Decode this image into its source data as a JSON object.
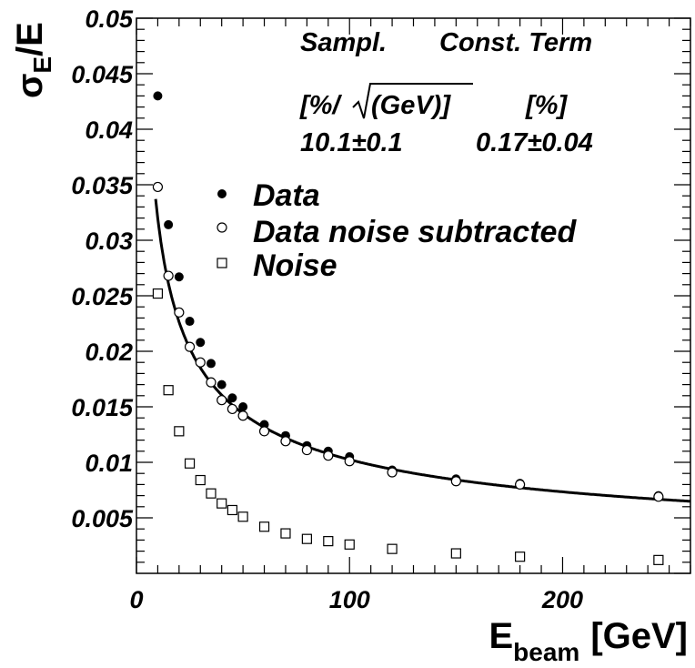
{
  "chart_data": {
    "type": "scatter",
    "xlabel": "E",
    "xlabel_sub": "beam",
    "xlabel_unit": "[GeV]",
    "ylabel": "σ",
    "ylabel_sub": "E",
    "ylabel_tail": "/E",
    "xlim": [
      0,
      260
    ],
    "ylim": [
      0,
      0.05
    ],
    "x_ticks": [
      0,
      100,
      200
    ],
    "y_ticks": [
      0.005,
      0.01,
      0.015,
      0.02,
      0.025,
      0.03,
      0.035,
      0.04,
      0.045,
      0.05
    ],
    "y_tick_labels": [
      "0.005",
      "0.01",
      "0.015",
      "0.02",
      "0.025",
      "0.03",
      "0.035",
      "0.04",
      "0.045",
      "0.05"
    ],
    "annotations": {
      "header_left": "Sampl.",
      "header_right": "Const. Term",
      "unit_left_a": "[%/",
      "unit_left_b": "(GeV)]",
      "unit_right": "[%]",
      "value_left": "10.1±0.1",
      "value_right": "0.17±0.04"
    },
    "legend_position": "upper-center",
    "series": [
      {
        "name": "Data",
        "marker": "filled-circle",
        "x": [
          10,
          15,
          20,
          25,
          30,
          35,
          40,
          45,
          50,
          60,
          70,
          80,
          90,
          100,
          120,
          150,
          180,
          245
        ],
        "y": [
          0.043,
          0.0314,
          0.0267,
          0.0227,
          0.0208,
          0.0189,
          0.017,
          0.0158,
          0.015,
          0.0134,
          0.0124,
          0.0115,
          0.011,
          0.0105,
          0.0093,
          0.0085,
          0.0081,
          0.007
        ]
      },
      {
        "name": "Data noise subtracted",
        "marker": "open-circle",
        "x": [
          10,
          15,
          20,
          25,
          30,
          35,
          40,
          45,
          50,
          60,
          70,
          80,
          90,
          100,
          120,
          150,
          180,
          245
        ],
        "y": [
          0.0348,
          0.0268,
          0.0235,
          0.0204,
          0.019,
          0.0172,
          0.0156,
          0.0148,
          0.0142,
          0.0128,
          0.0119,
          0.0111,
          0.0106,
          0.0101,
          0.0091,
          0.0083,
          0.008,
          0.0069
        ]
      },
      {
        "name": "Noise",
        "marker": "open-square",
        "x": [
          10,
          15,
          20,
          25,
          30,
          35,
          40,
          45,
          50,
          60,
          70,
          80,
          90,
          100,
          120,
          150,
          180,
          245
        ],
        "y": [
          0.0252,
          0.0165,
          0.0128,
          0.0099,
          0.0084,
          0.0072,
          0.0063,
          0.0057,
          0.0051,
          0.0042,
          0.0036,
          0.0031,
          0.0029,
          0.0026,
          0.0022,
          0.0018,
          0.0015,
          0.0012
        ]
      }
    ],
    "fit": {
      "sampling_percent": 10.1,
      "constant_percent": 0.17,
      "x_range": [
        9,
        260
      ]
    }
  }
}
